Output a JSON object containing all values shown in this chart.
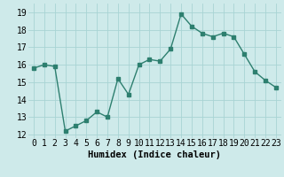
{
  "x": [
    0,
    1,
    2,
    3,
    4,
    5,
    6,
    7,
    8,
    9,
    10,
    11,
    12,
    13,
    14,
    15,
    16,
    17,
    18,
    19,
    20,
    21,
    22,
    23
  ],
  "y": [
    15.8,
    16.0,
    15.9,
    12.2,
    12.5,
    12.8,
    13.3,
    13.0,
    15.2,
    14.3,
    16.0,
    16.3,
    16.2,
    16.9,
    18.9,
    18.2,
    17.8,
    17.6,
    17.8,
    17.6,
    16.6,
    15.6,
    15.1,
    14.7
  ],
  "xlabel": "Humidex (Indice chaleur)",
  "xlim": [
    -0.5,
    23.5
  ],
  "ylim": [
    11.8,
    19.5
  ],
  "yticks": [
    12,
    13,
    14,
    15,
    16,
    17,
    18,
    19
  ],
  "xticks": [
    0,
    1,
    2,
    3,
    4,
    5,
    6,
    7,
    8,
    9,
    10,
    11,
    12,
    13,
    14,
    15,
    16,
    17,
    18,
    19,
    20,
    21,
    22,
    23
  ],
  "xtick_labels": [
    "0",
    "1",
    "2",
    "3",
    "4",
    "5",
    "6",
    "7",
    "8",
    "9",
    "10",
    "11",
    "12",
    "13",
    "14",
    "15",
    "16",
    "17",
    "18",
    "19",
    "20",
    "21",
    "22",
    "23"
  ],
  "line_color": "#2d7f6f",
  "bg_color": "#ceeaea",
  "grid_color": "#a8d4d4",
  "axis_fontsize": 7.5,
  "tick_fontsize": 7.0
}
